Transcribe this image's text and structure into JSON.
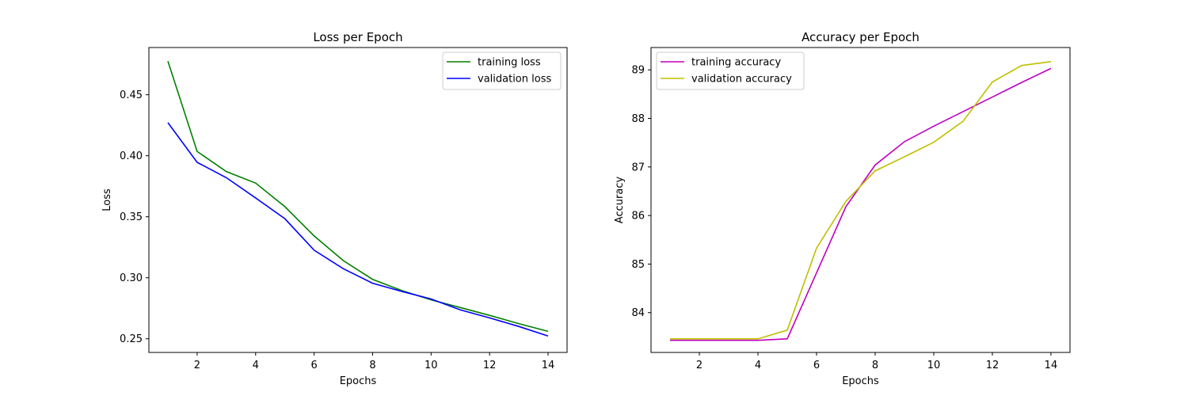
{
  "chart_data": [
    {
      "type": "line",
      "title": "Loss per Epoch",
      "xlabel": "Epochs",
      "ylabel": "Loss",
      "xlim": [
        0.35,
        14.65
      ],
      "ylim": [
        0.2388,
        0.4887
      ],
      "xticks": [
        2,
        4,
        6,
        8,
        10,
        12,
        14
      ],
      "yticks": [
        0.25,
        0.3,
        0.35,
        0.4,
        0.45
      ],
      "ytick_labels": [
        "0.25",
        "0.30",
        "0.35",
        "0.40",
        "0.45"
      ],
      "xtick_labels": [
        "2",
        "4",
        "6",
        "8",
        "10",
        "12",
        "14"
      ],
      "legend_position": "top-right",
      "x": [
        1,
        2,
        3,
        4,
        5,
        6,
        7,
        8,
        9,
        10,
        11,
        12,
        13,
        14
      ],
      "series": [
        {
          "name": "training loss",
          "color": "#008000",
          "values": [
            0.4775,
            0.4035,
            0.387,
            0.3776,
            0.3583,
            0.3343,
            0.314,
            0.2987,
            0.2895,
            0.2819,
            0.2756,
            0.2692,
            0.2624,
            0.2561
          ]
        },
        {
          "name": "validation loss",
          "color": "#0000ff",
          "values": [
            0.4271,
            0.3946,
            0.382,
            0.3654,
            0.3484,
            0.3226,
            0.3074,
            0.2955,
            0.2888,
            0.2826,
            0.2737,
            0.2671,
            0.2601,
            0.2523
          ]
        }
      ]
    },
    {
      "type": "line",
      "title": "Accuracy per Epoch",
      "xlabel": "Epochs",
      "ylabel": "Accuracy",
      "xlim": [
        0.35,
        14.65
      ],
      "ylim": [
        83.18,
        89.46
      ],
      "xticks": [
        2,
        4,
        6,
        8,
        10,
        12,
        14
      ],
      "yticks": [
        84,
        85,
        86,
        87,
        88,
        89
      ],
      "ytick_labels": [
        "84",
        "85",
        "86",
        "87",
        "88",
        "89"
      ],
      "xtick_labels": [
        "2",
        "4",
        "6",
        "8",
        "10",
        "12",
        "14"
      ],
      "legend_position": "top-left",
      "x": [
        1,
        2,
        3,
        4,
        5,
        6,
        7,
        8,
        9,
        10,
        11,
        12,
        13,
        14
      ],
      "series": [
        {
          "name": "training accuracy",
          "color": "#bf00bf",
          "values": [
            83.43,
            83.43,
            83.43,
            83.43,
            83.46,
            84.82,
            86.18,
            87.04,
            87.52,
            87.84,
            88.14,
            88.44,
            88.74,
            89.03
          ]
        },
        {
          "name": "validation accuracy",
          "color": "#bfbf00",
          "values": [
            83.46,
            83.46,
            83.46,
            83.46,
            83.64,
            85.33,
            86.29,
            86.92,
            87.21,
            87.51,
            87.94,
            88.75,
            89.09,
            89.17
          ]
        }
      ]
    }
  ]
}
